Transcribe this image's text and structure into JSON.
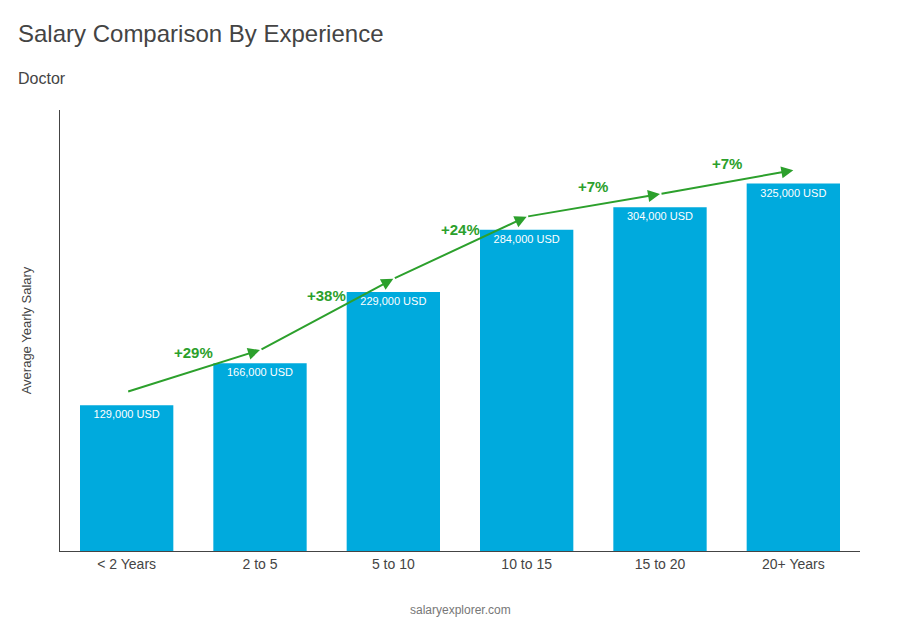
{
  "chart_data": {
    "type": "bar",
    "title": "Salary Comparison By Experience",
    "subtitle": "Doctor",
    "ylabel": "Average Yearly Salary",
    "categories": [
      "< 2 Years",
      "2 to 5",
      "5 to 10",
      "10 to 15",
      "15 to 20",
      "20+ Years"
    ],
    "values": [
      129000,
      166000,
      229000,
      284000,
      304000,
      325000
    ],
    "value_labels": [
      "129,000 USD",
      "166,000 USD",
      "229,000 USD",
      "284,000 USD",
      "304,000 USD",
      "325,000 USD"
    ],
    "data_labels": true,
    "color": "#00aadd",
    "ylim": [
      0,
      390000
    ],
    "yticks": [],
    "tick_labels": "x",
    "grid": false,
    "annotations": [
      {
        "text": "+29%",
        "from": "< 2 Years",
        "to": "2 to 5"
      },
      {
        "text": "+38%",
        "from": "2 to 5",
        "to": "5 to 10"
      },
      {
        "text": "+24%",
        "from": "5 to 10",
        "to": "10 to 15"
      },
      {
        "text": "+7%",
        "from": "10 to 15",
        "to": "15 to 20"
      },
      {
        "text": "+7%",
        "from": "15 to 20",
        "to": "20+ Years"
      },
      {
        "text": "salaryexplorer.com"
      }
    ]
  }
}
